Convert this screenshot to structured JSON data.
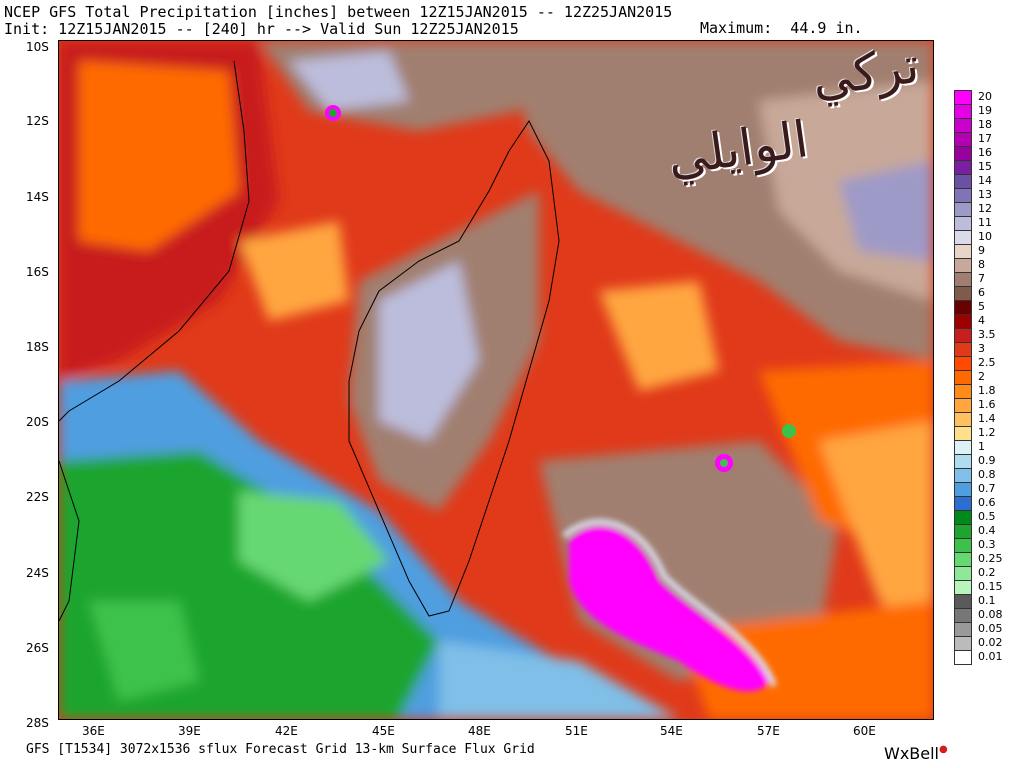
{
  "header": {
    "title": "NCEP GFS Total Precipitation [inches] between 12Z15JAN2015 -- 12Z25JAN2015",
    "subtitle": "Init: 12Z15JAN2015 -- [240] hr --> Valid Sun 12Z25JAN2015",
    "maximum": "Maximum:  44.9 in."
  },
  "footer": {
    "grid_info": "GFS [T1534] 3072x1536 sflux Forecast Grid 13-km Surface Flux Grid",
    "logo": "WxBell"
  },
  "watermark": {
    "line1": "تركي",
    "line2": "الوايلي"
  },
  "axes": {
    "lat_labels": [
      "10S",
      "12S",
      "14S",
      "16S",
      "18S",
      "20S",
      "22S",
      "24S",
      "26S",
      "28S"
    ],
    "lon_labels": [
      "36E",
      "39E",
      "42E",
      "45E",
      "48E",
      "51E",
      "54E",
      "57E",
      "60E"
    ]
  },
  "colorbar": {
    "levels": [
      {
        "label": "20",
        "color": "#ff00ff"
      },
      {
        "label": "19",
        "color": "#e600e6"
      },
      {
        "label": "18",
        "color": "#cc00cc"
      },
      {
        "label": "17",
        "color": "#b300b3"
      },
      {
        "label": "16",
        "color": "#9900a0"
      },
      {
        "label": "15",
        "color": "#7a1fa2"
      },
      {
        "label": "14",
        "color": "#6a51a3"
      },
      {
        "label": "13",
        "color": "#8073b8"
      },
      {
        "label": "12",
        "color": "#9e9ac8"
      },
      {
        "label": "11",
        "color": "#bcbddc"
      },
      {
        "label": "10",
        "color": "#dadaeb"
      },
      {
        "label": "9",
        "color": "#e8d4c9"
      },
      {
        "label": "8",
        "color": "#c8a898"
      },
      {
        "label": "7",
        "color": "#a17f70"
      },
      {
        "label": "6",
        "color": "#7f5a4d"
      },
      {
        "label": "5",
        "color": "#6b0000"
      },
      {
        "label": "4",
        "color": "#9e0000"
      },
      {
        "label": "3.5",
        "color": "#c81e1e"
      },
      {
        "label": "3",
        "color": "#e03a1a"
      },
      {
        "label": "2.5",
        "color": "#ff4a00"
      },
      {
        "label": "2",
        "color": "#ff6a00"
      },
      {
        "label": "1.8",
        "color": "#ff8c1a"
      },
      {
        "label": "1.6",
        "color": "#ffa640"
      },
      {
        "label": "1.4",
        "color": "#ffc060"
      },
      {
        "label": "1.2",
        "color": "#ffe08a"
      },
      {
        "label": "1",
        "color": "#dcf2f7"
      },
      {
        "label": "0.9",
        "color": "#b0dcf0"
      },
      {
        "label": "0.8",
        "color": "#7fbfe8"
      },
      {
        "label": "0.7",
        "color": "#4f9ee0"
      },
      {
        "label": "0.6",
        "color": "#2c6fd0"
      },
      {
        "label": "0.5",
        "color": "#008a1a"
      },
      {
        "label": "0.4",
        "color": "#1fa52f"
      },
      {
        "label": "0.3",
        "color": "#3cc24c"
      },
      {
        "label": "0.25",
        "color": "#66d872"
      },
      {
        "label": "0.2",
        "color": "#8fe898"
      },
      {
        "label": "0.15",
        "color": "#b8f5bd"
      },
      {
        "label": "0.1",
        "color": "#5a5a5a"
      },
      {
        "label": "0.08",
        "color": "#777777"
      },
      {
        "label": "0.05",
        "color": "#999999"
      },
      {
        "label": "0.02",
        "color": "#bbbbbb"
      },
      {
        "label": "0.01",
        "color": "#ffffff"
      }
    ]
  }
}
